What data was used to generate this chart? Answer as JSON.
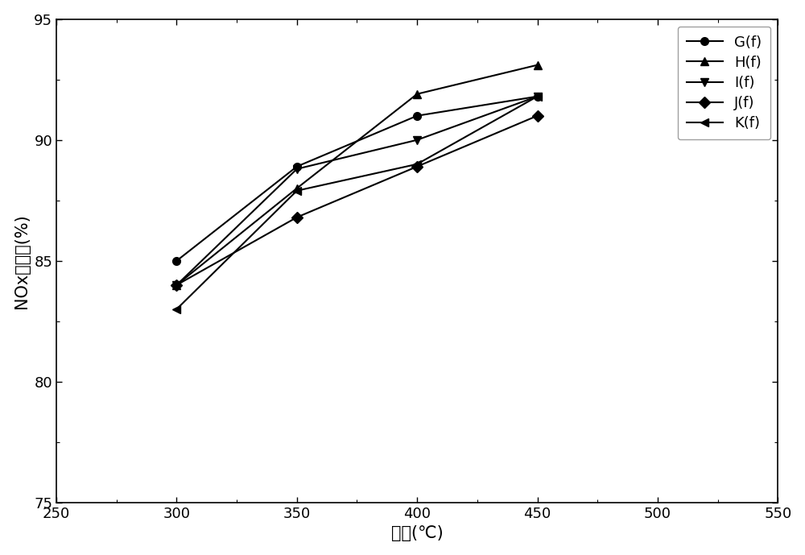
{
  "x": [
    300,
    350,
    400,
    450
  ],
  "series": {
    "G(f)": [
      85.0,
      88.9,
      91.0,
      91.8
    ],
    "H(f)": [
      84.0,
      88.0,
      91.9,
      93.1
    ],
    "I(f)": [
      84.0,
      88.8,
      90.0,
      91.8
    ],
    "J(f)": [
      84.0,
      86.8,
      88.9,
      91.0
    ],
    "K(f)": [
      83.0,
      87.9,
      89.0,
      91.8
    ]
  },
  "markers": {
    "G(f)": "o",
    "H(f)": "^",
    "I(f)": "v",
    "J(f)": "D",
    "K(f)": "<"
  },
  "xlabel": "温度(℃)",
  "ylabel": "NOx转化率(%)",
  "xlim": [
    250,
    550
  ],
  "ylim": [
    75,
    95
  ],
  "xticks": [
    250,
    300,
    350,
    400,
    450,
    500,
    550
  ],
  "yticks": [
    75,
    80,
    85,
    90,
    95
  ],
  "line_color": "#000000",
  "marker_size": 7,
  "linewidth": 1.5,
  "bg_color": "#ffffff",
  "tick_fontsize": 13,
  "label_fontsize": 15,
  "legend_fontsize": 13
}
